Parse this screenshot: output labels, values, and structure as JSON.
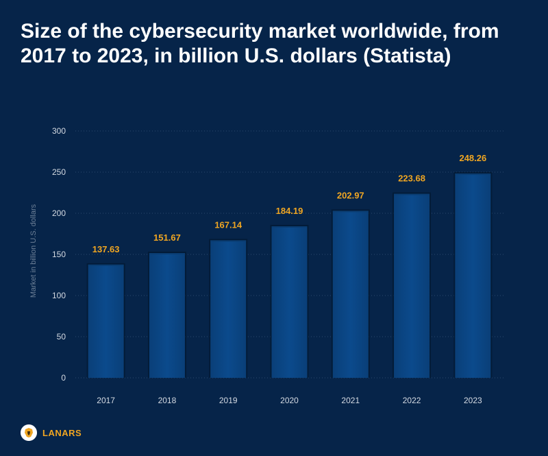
{
  "header": {
    "title": "Size of the cybersecurity market worldwide, from 2017 to 2023, in billion U.S. dollars (Statista)"
  },
  "chart_data": {
    "type": "bar",
    "title": "Size of the cybersecurity market worldwide, from 2017 to 2023, in billion U.S. dollars (Statista)",
    "categories": [
      "2017",
      "2018",
      "2019",
      "2020",
      "2021",
      "2022",
      "2023"
    ],
    "values": [
      137.63,
      151.67,
      167.14,
      184.19,
      202.97,
      223.68,
      248.26
    ],
    "value_labels": [
      "137.63",
      "151.67",
      "167.14",
      "184.19",
      "202.97",
      "223.68",
      "248.26"
    ],
    "xlabel": "",
    "ylabel": "Market in billion U.S. dollars",
    "ylim": [
      0,
      300
    ],
    "yticks": [
      0,
      50,
      100,
      150,
      200,
      250,
      300
    ],
    "grid": true,
    "colors": {
      "background": "#062449",
      "bar": "#0b4a8c",
      "bar_top": "#0a3d72",
      "label": "#f0a622",
      "tick": "#d5dbe3",
      "ylabel": "#6c7f96",
      "grid": "#2c4a6f"
    }
  },
  "brand": {
    "name": "LANARS",
    "icon": "lion-head-icon",
    "color": "#f0a622"
  }
}
